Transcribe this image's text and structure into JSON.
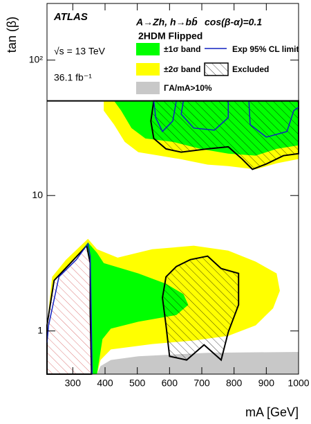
{
  "chart_data": {
    "type": "contour",
    "title": "A→Zh, h→bb̄",
    "subtitle": "cos(β-α)=0.1",
    "model": "2HDM Flipped",
    "experiment": "ATLAS",
    "energy": "√s = 13 TeV",
    "luminosity": "36.1 fb⁻¹",
    "x_label": "mA [GeV]",
    "y_label": "tan (β)",
    "xlim": [
      220,
      1000
    ],
    "ylim": [
      0.48,
      262
    ],
    "log_y": true,
    "xticks": [
      300,
      400,
      500,
      600,
      700,
      800,
      900,
      1000
    ],
    "yticks": [
      1,
      10,
      {
        "value": 100,
        "label": "10²"
      }
    ],
    "hline": 50,
    "series": [
      {
        "name": "±2σ band",
        "color": "#ffff00",
        "style": "fill",
        "polygons": [
          {
            "x": [
              396,
              1000,
              1000,
              932,
              867,
              782,
              718,
              632,
              568,
              503,
              461,
              428,
              396
            ],
            "y": [
              50,
              50,
              18.6,
              17.3,
              15.6,
              16.5,
              16.9,
              18.6,
              19.7,
              20.9,
              24.9,
              33.4,
              42.3
            ]
          },
          {
            "x": [
              220,
              236,
              279,
              347,
              375,
              439,
              546,
              675,
              782,
              867,
              932,
              942,
              921,
              867,
              782,
              675,
              546,
              418,
              386,
              375,
              349,
              220
            ],
            "y": [
              1.1,
              2.51,
              3.36,
              4.79,
              4.01,
              3.48,
              4.01,
              4.26,
              3.92,
              3.25,
              2.66,
              1.98,
              1.47,
              1.1,
              0.92,
              0.85,
              0.8,
              0.73,
              0.61,
              0.48,
              0.48,
              0.82
            ]
          }
        ]
      },
      {
        "name": "±1σ band",
        "color": "#00ff00",
        "style": "fill",
        "polygons": [
          {
            "x": [
              428,
              1000,
              1000,
              932,
              867,
              782,
              696,
              610,
              525,
              482,
              450
            ],
            "y": [
              50,
              50,
              23.5,
              22.1,
              19.7,
              20.4,
              22.1,
              24.9,
              26.4,
              31.5,
              42.3
            ]
          },
          {
            "x": [
              225,
              246,
              300,
              347,
              375,
              396,
              503,
              589,
              643,
              658,
              621,
              503,
              418,
              392,
              375,
              349,
              225
            ],
            "y": [
              0.98,
              2.36,
              3.25,
              4.51,
              3.78,
              3.17,
              2.66,
              2.23,
              1.87,
              1.56,
              1.31,
              1.17,
              1.04,
              0.87,
              0.48,
              0.48,
              0.87
            ]
          }
        ]
      },
      {
        "name": "ΓA/mA>10%",
        "color": "#c8c8c8",
        "style": "fill",
        "polygons": [
          {
            "x": [
              375,
              386,
              418,
              503,
              718,
              1000,
              1000
            ],
            "y": [
              0.48,
              0.55,
              0.61,
              0.65,
              0.69,
              0.7,
              0.48
            ]
          }
        ]
      },
      {
        "name": "Excluded",
        "color": "#000000",
        "style": "hatch",
        "polygons": [
          {
            "x": [
              551,
              542,
              551,
              589,
              636,
              718,
              782,
              825,
              857,
              900,
              953,
              1000,
              1000
            ],
            "y": [
              50,
              35.5,
              26.4,
              22.1,
              20.9,
              22.1,
              22.9,
              18.6,
              15.6,
              17.1,
              19.7,
              20.4,
              50
            ]
          },
          {
            "x": [
              589,
              621,
              664,
              718,
              760,
              814,
              814,
              782,
              760,
              707,
              653,
              600,
              589,
              578
            ],
            "y": [
              2.51,
              2.99,
              3.36,
              3.57,
              2.89,
              2.66,
              1.56,
              0.98,
              0.61,
              0.79,
              0.61,
              0.65,
              1.1,
              1.76
            ]
          },
          {
            "x": [
              220,
              242,
              289,
              343,
              354,
              354,
              358,
              220
            ],
            "y": [
              1.1,
              2.36,
              3.1,
              4.26,
              3.17,
              1.39,
              0.48,
              0.48
            ],
            "fill": "#ffffff",
            "hatch_color": "#d04040"
          }
        ]
      },
      {
        "name": "Exp 95% CL limit",
        "color": "#1020c0",
        "style": "line",
        "polygons": [
          {
            "x": [
              220,
              225,
              257,
              311,
              347,
              354,
              356,
              360
            ],
            "y": [
              0.82,
              1.1,
              2.51,
              3.36,
              4.41,
              3.57,
              1.98,
              0.48
            ]
          },
          {
            "x": [
              551,
              557,
              578,
              610,
              621
            ],
            "y": [
              50,
              37.6,
              29.7,
              35.5,
              50
            ]
          },
          {
            "x": [
              643,
              636,
              675,
              739,
              782,
              782
            ],
            "y": [
              50,
              39.9,
              31.5,
              30.4,
              37.6,
              50
            ]
          },
          {
            "x": [
              846,
              850,
              900,
              964,
              985,
              1000
            ],
            "y": [
              50,
              33.4,
              27.0,
              29.7,
              42.3,
              44.9
            ]
          }
        ]
      }
    ]
  }
}
